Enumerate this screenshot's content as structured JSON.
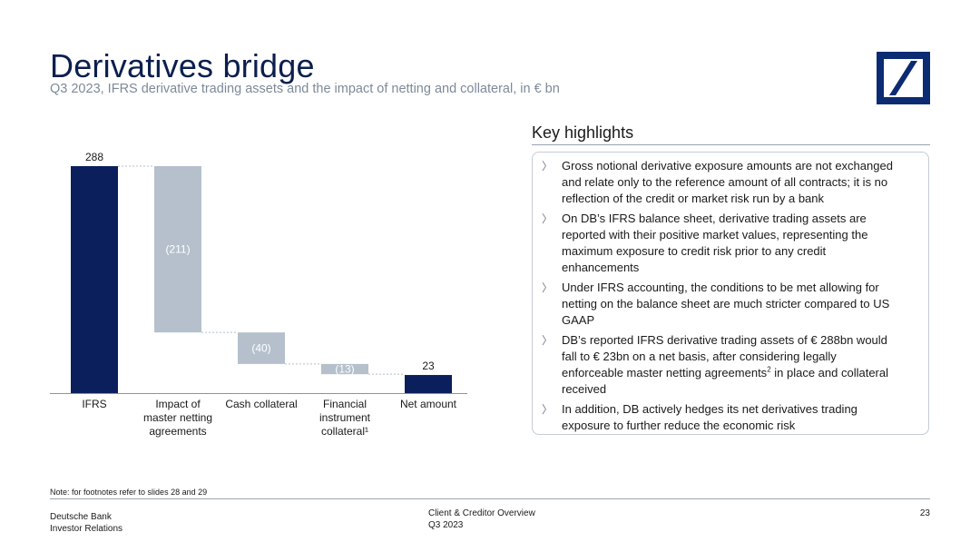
{
  "header": {
    "title": "Derivatives bridge",
    "subtitle": "Q3 2023, IFRS derivative trading assets and the impact of netting and collateral, in € bn"
  },
  "chart_data": {
    "type": "bar",
    "title": "",
    "categories": [
      "IFRS",
      "Impact of master netting agreements",
      "Cash collateral",
      "Financial instrument collateral¹",
      "Net amount"
    ],
    "category_lines": [
      [
        "IFRS"
      ],
      [
        "Impact of",
        "master netting",
        "agreements"
      ],
      [
        "Cash collateral"
      ],
      [
        "Financial",
        "instrument",
        "collateral¹"
      ],
      [
        "Net amount"
      ]
    ],
    "values": [
      288,
      -211,
      -40,
      -13,
      23
    ],
    "value_labels": [
      "288",
      "(211)",
      "(40)",
      "(13)",
      "23"
    ],
    "kinds": [
      "total",
      "delta",
      "delta",
      "delta",
      "total"
    ],
    "colors": {
      "total": "#0b1f5c",
      "delta": "#b5c0cc",
      "delta_label": "#ffffff"
    },
    "ylim": [
      0,
      288
    ],
    "grid": false,
    "legend": "none"
  },
  "highlights": {
    "title": "Key highlights",
    "items": [
      {
        "lines": [
          "Gross notional derivative exposure amounts are not exchanged",
          "and relate only to the reference amount of all contracts; it is no",
          "reflection of the credit or market risk run by a bank"
        ]
      },
      {
        "lines": [
          "On DB’s IFRS balance sheet, derivative trading assets are",
          "reported with their positive market values, representing the",
          "maximum exposure to credit risk prior to any credit",
          "enhancements"
        ]
      },
      {
        "lines": [
          "Under IFRS accounting, the conditions to be met allowing for",
          "netting on the balance sheet are much stricter compared to US",
          "GAAP"
        ]
      },
      {
        "lines": [
          "DB’s reported IFRS derivative trading assets of € 288bn would",
          "fall to € 23bn on a net basis, after considering legally",
          "enforceable master netting agreements",
          "received"
        ],
        "sup": "2",
        "sup_tail": " in place and collateral"
      },
      {
        "lines": [
          "In addition, DB actively hedges its net derivatives trading",
          "exposure to further reduce the economic risk"
        ]
      }
    ]
  },
  "note": "Note: for footnotes refer to slides 28 and 29",
  "footer": {
    "left_line1": "Deutsche Bank",
    "left_line2": "Investor Relations",
    "center_line1": "Client & Creditor Overview",
    "center_line2": "Q3 2023",
    "page_number": "23"
  },
  "icons": {
    "logo": "deutsche-bank-logo-icon",
    "bullet": "chevron-right-icon"
  }
}
